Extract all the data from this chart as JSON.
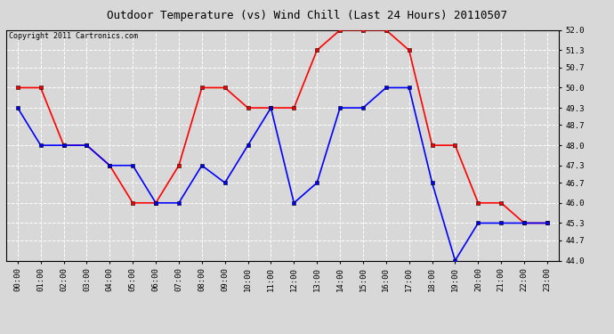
{
  "title": "Outdoor Temperature (vs) Wind Chill (Last 24 Hours) 20110507",
  "copyright": "Copyright 2011 Cartronics.com",
  "hours": [
    "00:00",
    "01:00",
    "02:00",
    "03:00",
    "04:00",
    "05:00",
    "06:00",
    "07:00",
    "08:00",
    "09:00",
    "10:00",
    "11:00",
    "12:00",
    "13:00",
    "14:00",
    "15:00",
    "16:00",
    "17:00",
    "18:00",
    "19:00",
    "20:00",
    "21:00",
    "22:00",
    "23:00"
  ],
  "outdoor_temp": [
    50.0,
    50.0,
    48.0,
    48.0,
    47.3,
    46.0,
    46.0,
    47.3,
    50.0,
    50.0,
    49.3,
    49.3,
    49.3,
    51.3,
    52.0,
    52.0,
    52.0,
    51.3,
    48.0,
    48.0,
    46.0,
    46.0,
    45.3,
    45.3
  ],
  "wind_chill": [
    49.3,
    48.0,
    48.0,
    48.0,
    47.3,
    47.3,
    46.0,
    46.0,
    47.3,
    46.7,
    48.0,
    49.3,
    46.0,
    46.7,
    49.3,
    49.3,
    50.0,
    50.0,
    46.7,
    44.0,
    45.3,
    45.3,
    45.3,
    45.3
  ],
  "temp_color": "#ff0000",
  "chill_color": "#0000ff",
  "background_color": "#d8d8d8",
  "plot_background": "#d8d8d8",
  "grid_color": "#ffffff",
  "ylim_min": 44.0,
  "ylim_max": 52.0,
  "yticks": [
    44.0,
    44.7,
    45.3,
    46.0,
    46.7,
    47.3,
    48.0,
    48.7,
    49.3,
    50.0,
    50.7,
    51.3,
    52.0
  ],
  "title_fontsize": 9,
  "copyright_fontsize": 6,
  "tick_fontsize": 6.5,
  "marker": "s",
  "marker_size": 2.5,
  "linewidth": 1.2
}
